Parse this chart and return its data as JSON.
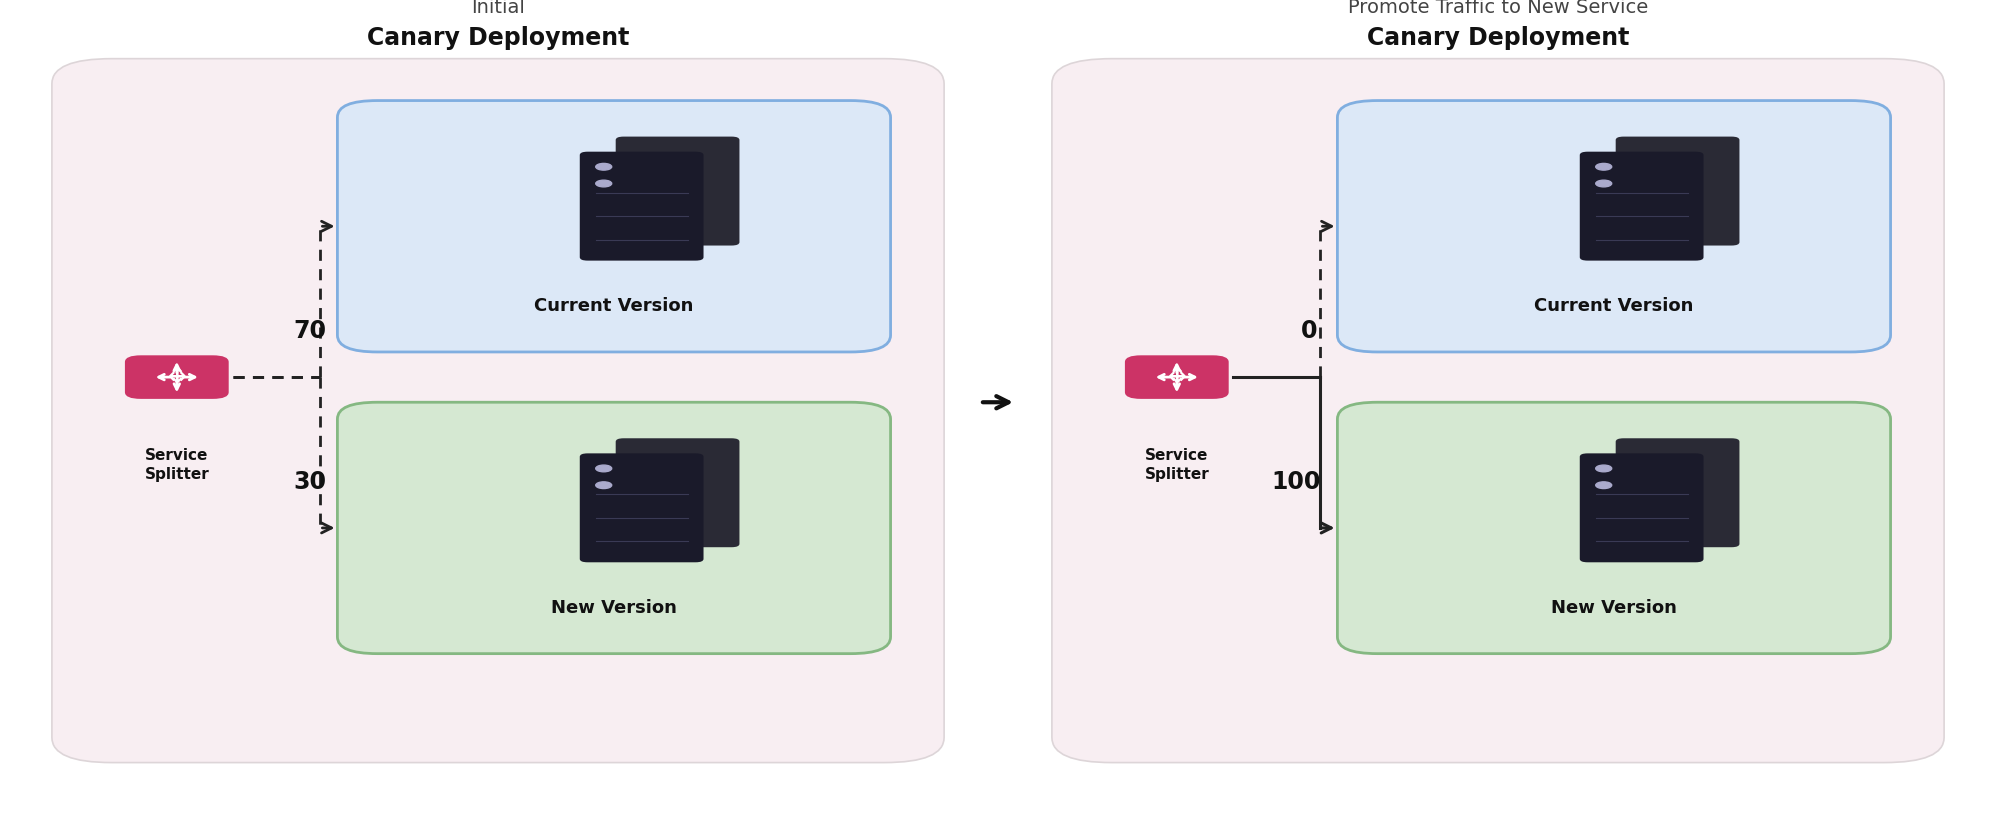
{
  "bg_color": "#ffffff",
  "panel_bg": "#f8eef2",
  "panel_border": "#ddd5d8",
  "blue_box_bg": "#dce8f7",
  "blue_box_border": "#80aee0",
  "green_box_bg": "#d5e8d2",
  "green_box_border": "#85b882",
  "splitter_color": "#cc3366",
  "label_color": "#111111",
  "subtitle_color": "#444444",
  "arrow_color": "#111111",
  "title1_line1": "Initial",
  "title1_line2": "Canary Deployment",
  "title2_line1": "Promote Traffic to New Service",
  "title2_line2": "Canary Deployment",
  "left_traffic_top": "70",
  "left_traffic_bot": "30",
  "right_traffic_top": "0",
  "right_traffic_bot": "100",
  "server_dark": "#1a1a2a",
  "server_mid": "#2a2a3a"
}
